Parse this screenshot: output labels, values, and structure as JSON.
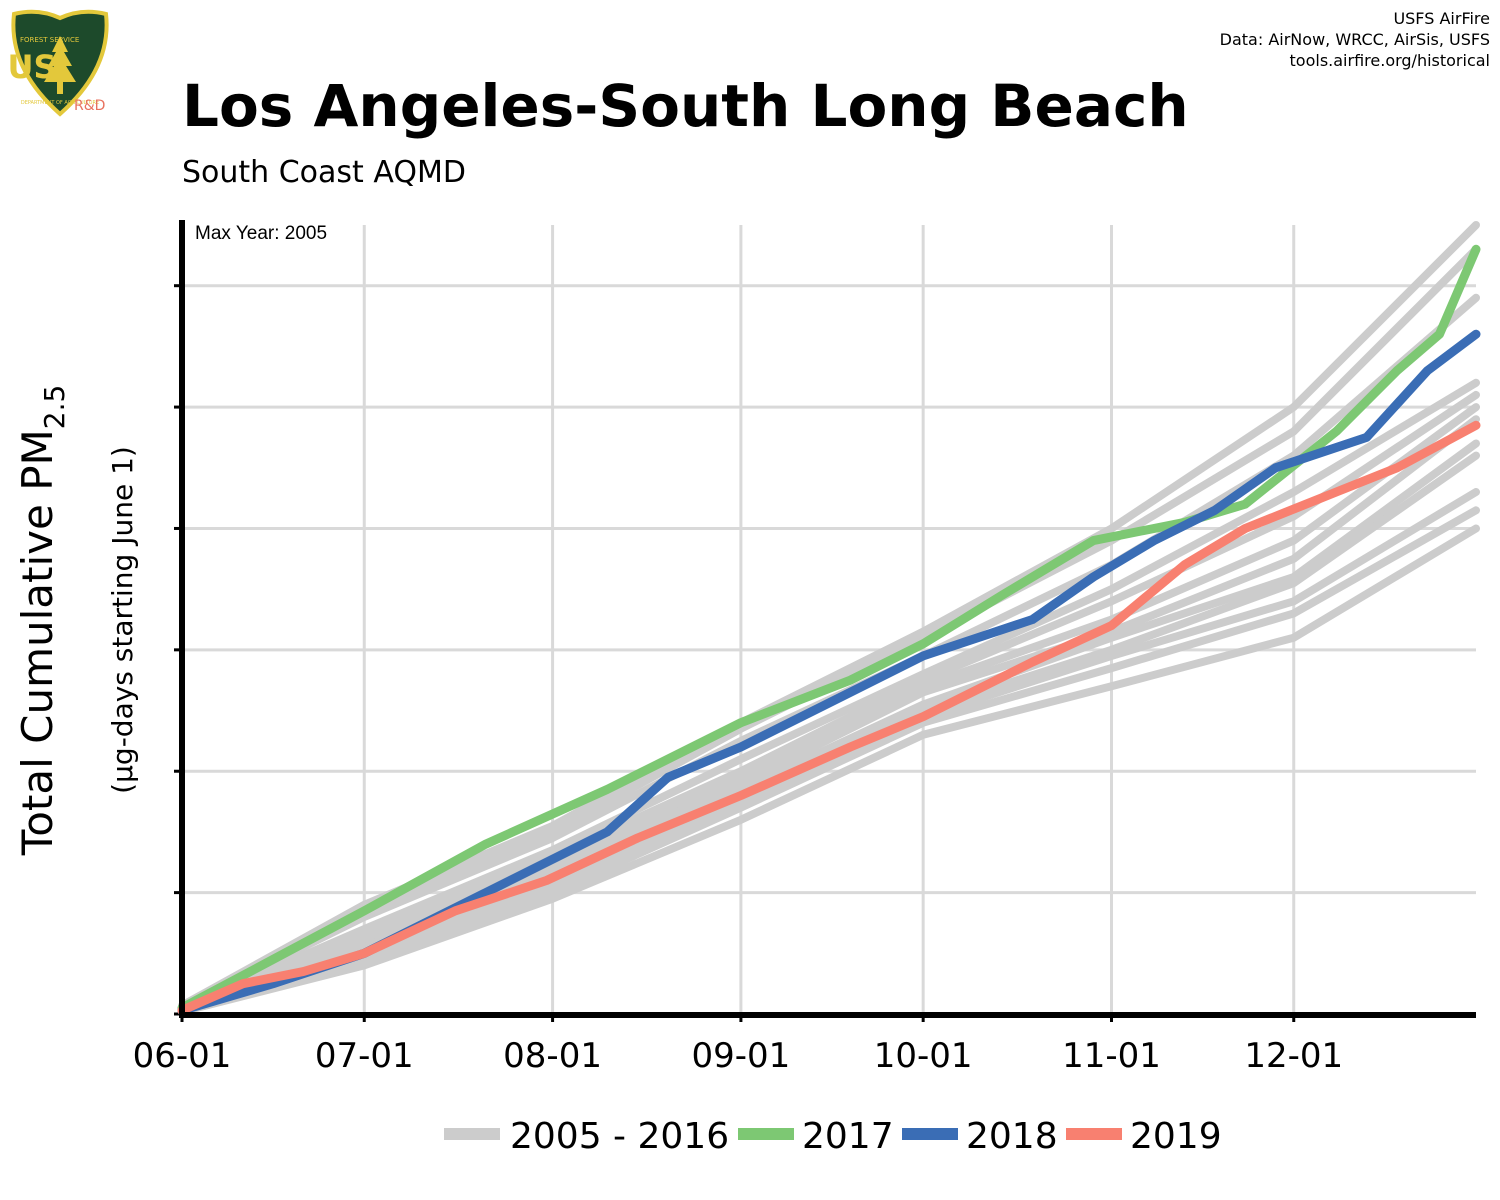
{
  "header": {
    "title": "Los Angeles-South Long Beach",
    "subtitle": "South Coast AQMD",
    "credits": [
      "USFS AirFire",
      "Data: AirNow, WRCC, AirSis, USFS",
      "tools.airfire.org/historical"
    ]
  },
  "logo": {
    "text": "US",
    "top_text": "FOREST SERVICE",
    "bottom_text": "DEPARTMENT OF AGRICULTURE",
    "tag": "R&D",
    "colors": {
      "shield": "#1d4a2b",
      "border": "#e3c83b",
      "letters": "#e3c83b",
      "tag": "#e8725f"
    }
  },
  "chart_data": {
    "type": "line",
    "title": "Los Angeles-South Long Beach",
    "subtitle": "South Coast AQMD",
    "annotation": "Max Year: 2005",
    "ylabel_main": "Total Cumulative PM",
    "ylabel_sub": "2.5",
    "ylabel_units": "(µg-days starting June 1)",
    "x_tick_labels": [
      "06-01",
      "07-01",
      "08-01",
      "09-01",
      "10-01",
      "11-01",
      "12-01"
    ],
    "x_tick_days": [
      0,
      30,
      61,
      92,
      122,
      153,
      183
    ],
    "xlim": [
      0,
      213
    ],
    "ylim": [
      0,
      6.5
    ],
    "y_tick_labels_shown": false,
    "grid": true,
    "legend_position": "bottom",
    "colors": {
      "history": "#cccccc",
      "2017": "#7dc873",
      "2018": "#3a6db5",
      "2019": "#f88070",
      "axis": "#000000",
      "grid": "#d9d9d9"
    },
    "series": [
      {
        "name": "2017",
        "x": [
          0,
          15,
          30,
          50,
          70,
          92,
          110,
          122,
          135,
          150,
          165,
          175,
          190,
          200,
          207,
          213
        ],
        "y": [
          0.05,
          0.45,
          0.85,
          1.4,
          1.85,
          2.4,
          2.75,
          3.05,
          3.45,
          3.9,
          4.05,
          4.2,
          4.8,
          5.3,
          5.6,
          6.3
        ]
      },
      {
        "name": "2018",
        "x": [
          0,
          15,
          30,
          50,
          70,
          80,
          92,
          110,
          122,
          140,
          150,
          160,
          170,
          180,
          195,
          205,
          213
        ],
        "y": [
          0.03,
          0.25,
          0.5,
          1.0,
          1.5,
          1.95,
          2.2,
          2.65,
          2.95,
          3.25,
          3.6,
          3.9,
          4.15,
          4.5,
          4.75,
          5.3,
          5.6
        ]
      },
      {
        "name": "2019",
        "x": [
          0,
          10,
          20,
          30,
          45,
          60,
          75,
          92,
          110,
          122,
          140,
          153,
          165,
          175,
          190,
          200,
          213
        ],
        "y": [
          0.03,
          0.25,
          0.35,
          0.5,
          0.85,
          1.1,
          1.45,
          1.8,
          2.2,
          2.45,
          2.9,
          3.2,
          3.7,
          4.0,
          4.3,
          4.5,
          4.85
        ]
      },
      {
        "name": "2005 - 2016",
        "x": [
          0,
          30,
          61,
          92,
          122,
          153,
          183,
          213
        ],
        "y": [
          0.07,
          0.9,
          1.55,
          2.4,
          3.15,
          4.0,
          5.0,
          6.5
        ]
      },
      {
        "name": "2005 - 2016",
        "x": [
          0,
          30,
          61,
          92,
          122,
          153,
          183,
          213
        ],
        "y": [
          0.05,
          0.85,
          1.5,
          2.35,
          3.1,
          3.9,
          4.8,
          6.3
        ]
      },
      {
        "name": "2005 - 2016",
        "x": [
          0,
          30,
          61,
          92,
          122,
          153,
          183,
          213
        ],
        "y": [
          0.06,
          0.8,
          1.45,
          2.25,
          2.95,
          3.7,
          4.6,
          5.9
        ]
      },
      {
        "name": "2005 - 2016",
        "x": [
          0,
          30,
          61,
          92,
          122,
          153,
          183,
          213
        ],
        "y": [
          0.05,
          0.7,
          1.35,
          2.1,
          2.8,
          3.5,
          4.3,
          5.2
        ]
      },
      {
        "name": "2005 - 2016",
        "x": [
          0,
          30,
          61,
          92,
          122,
          153,
          183,
          213
        ],
        "y": [
          0.04,
          0.65,
          1.3,
          2.0,
          2.75,
          3.4,
          4.1,
          5.1
        ]
      },
      {
        "name": "2005 - 2016",
        "x": [
          0,
          30,
          61,
          92,
          122,
          153,
          183,
          213
        ],
        "y": [
          0.04,
          0.6,
          1.25,
          1.95,
          2.7,
          3.25,
          3.9,
          5.0
        ]
      },
      {
        "name": "2005 - 2016",
        "x": [
          0,
          30,
          61,
          92,
          122,
          153,
          183,
          213
        ],
        "y": [
          0.03,
          0.55,
          1.2,
          1.9,
          2.65,
          3.15,
          3.75,
          4.9
        ]
      },
      {
        "name": "2005 - 2016",
        "x": [
          0,
          30,
          61,
          92,
          122,
          153,
          183,
          213
        ],
        "y": [
          0.03,
          0.55,
          1.15,
          1.85,
          2.55,
          3.1,
          3.6,
          4.7
        ]
      },
      {
        "name": "2005 - 2016",
        "x": [
          0,
          30,
          61,
          92,
          122,
          153,
          183,
          213
        ],
        "y": [
          0.03,
          0.5,
          1.1,
          1.8,
          2.5,
          3.0,
          3.55,
          4.6
        ]
      },
      {
        "name": "2005 - 2016",
        "x": [
          0,
          30,
          61,
          92,
          122,
          153,
          183,
          213
        ],
        "y": [
          0.02,
          0.5,
          1.05,
          1.75,
          2.45,
          2.95,
          3.4,
          4.3
        ]
      },
      {
        "name": "2005 - 2016",
        "x": [
          0,
          30,
          61,
          92,
          122,
          153,
          183,
          213
        ],
        "y": [
          0.02,
          0.45,
          1.0,
          1.7,
          2.4,
          2.85,
          3.3,
          4.15
        ]
      },
      {
        "name": "2005 - 2016",
        "x": [
          0,
          30,
          61,
          92,
          122,
          153,
          183,
          213
        ],
        "y": [
          0.02,
          0.4,
          0.95,
          1.6,
          2.3,
          2.7,
          3.1,
          4.0
        ]
      }
    ],
    "legend": [
      {
        "label": "2005 - 2016",
        "color": "#cccccc"
      },
      {
        "label": "2017",
        "color": "#7dc873"
      },
      {
        "label": "2018",
        "color": "#3a6db5"
      },
      {
        "label": "2019",
        "color": "#f88070"
      }
    ]
  }
}
